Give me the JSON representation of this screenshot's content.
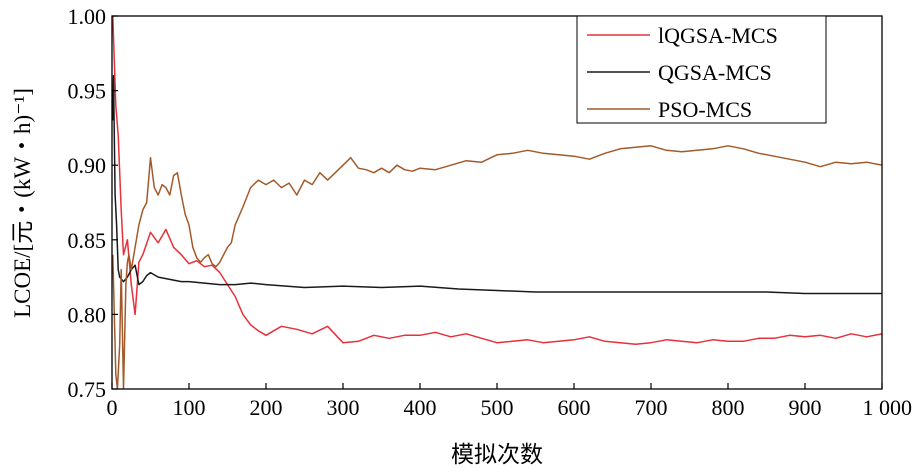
{
  "chart_data": {
    "type": "line",
    "title": "",
    "xlabel": "模拟次数",
    "ylabel": "LCOE/[元・(kW・h)⁻¹]",
    "xlim": [
      0,
      1000
    ],
    "ylim": [
      0.75,
      1.0
    ],
    "x_ticks": [
      0,
      100,
      200,
      300,
      400,
      500,
      600,
      700,
      800,
      900,
      1000
    ],
    "x_tick_labels": [
      "0",
      "100",
      "200",
      "300",
      "400",
      "500",
      "600",
      "700",
      "800",
      "900",
      "1 000"
    ],
    "y_ticks": [
      0.75,
      0.8,
      0.85,
      0.9,
      0.95,
      1.0
    ],
    "y_tick_labels": [
      "0.75",
      "0.80",
      "0.85",
      "0.90",
      "0.95",
      "1.00"
    ],
    "grid": false,
    "legend_position": "top-right",
    "series": [
      {
        "name": "lQGSA-MCS",
        "color": "#e8303a",
        "x": [
          1,
          3,
          5,
          8,
          12,
          15,
          20,
          25,
          30,
          35,
          40,
          50,
          60,
          70,
          80,
          90,
          100,
          110,
          120,
          130,
          140,
          150,
          160,
          170,
          180,
          190,
          200,
          220,
          240,
          260,
          280,
          300,
          320,
          340,
          360,
          380,
          400,
          420,
          440,
          460,
          480,
          500,
          520,
          540,
          560,
          580,
          600,
          620,
          640,
          660,
          680,
          700,
          720,
          740,
          760,
          780,
          800,
          820,
          840,
          860,
          880,
          900,
          920,
          940,
          960,
          980,
          1000
        ],
        "values": [
          1.0,
          0.97,
          0.94,
          0.92,
          0.87,
          0.84,
          0.85,
          0.82,
          0.8,
          0.835,
          0.84,
          0.855,
          0.848,
          0.857,
          0.845,
          0.84,
          0.834,
          0.836,
          0.832,
          0.833,
          0.828,
          0.82,
          0.812,
          0.8,
          0.793,
          0.789,
          0.786,
          0.792,
          0.79,
          0.787,
          0.792,
          0.781,
          0.782,
          0.786,
          0.784,
          0.786,
          0.786,
          0.788,
          0.785,
          0.787,
          0.784,
          0.781,
          0.782,
          0.783,
          0.781,
          0.782,
          0.783,
          0.785,
          0.782,
          0.781,
          0.78,
          0.781,
          0.783,
          0.782,
          0.781,
          0.783,
          0.782,
          0.782,
          0.784,
          0.784,
          0.786,
          0.785,
          0.786,
          0.784,
          0.787,
          0.785,
          0.787
        ]
      },
      {
        "name": "QGSA-MCS",
        "color": "#1a1a1a",
        "x": [
          1,
          2,
          4,
          6,
          8,
          10,
          15,
          20,
          25,
          30,
          35,
          40,
          45,
          50,
          60,
          70,
          80,
          90,
          100,
          120,
          140,
          160,
          180,
          200,
          250,
          300,
          350,
          400,
          450,
          500,
          550,
          600,
          650,
          700,
          750,
          800,
          850,
          900,
          950,
          1000
        ],
        "values": [
          0.93,
          0.96,
          0.88,
          0.86,
          0.83,
          0.825,
          0.822,
          0.825,
          0.83,
          0.833,
          0.82,
          0.822,
          0.826,
          0.828,
          0.825,
          0.824,
          0.823,
          0.822,
          0.822,
          0.821,
          0.82,
          0.82,
          0.821,
          0.82,
          0.818,
          0.819,
          0.818,
          0.819,
          0.817,
          0.816,
          0.815,
          0.815,
          0.815,
          0.815,
          0.815,
          0.815,
          0.815,
          0.814,
          0.814,
          0.814
        ]
      },
      {
        "name": "PSO-MCS",
        "color": "#a35a2a",
        "x": [
          1,
          3,
          5,
          7,
          10,
          12,
          15,
          18,
          20,
          22,
          25,
          30,
          35,
          40,
          45,
          50,
          55,
          60,
          65,
          70,
          75,
          80,
          85,
          90,
          95,
          100,
          105,
          110,
          115,
          120,
          125,
          130,
          135,
          140,
          145,
          150,
          155,
          160,
          170,
          180,
          190,
          200,
          210,
          220,
          230,
          240,
          250,
          260,
          270,
          280,
          290,
          300,
          310,
          320,
          330,
          340,
          350,
          360,
          370,
          380,
          390,
          400,
          420,
          440,
          460,
          480,
          500,
          520,
          540,
          560,
          580,
          600,
          620,
          640,
          660,
          680,
          700,
          720,
          740,
          760,
          780,
          800,
          820,
          840,
          860,
          880,
          900,
          920,
          940,
          960,
          980,
          1000
        ],
        "values": [
          0.84,
          0.8,
          0.76,
          0.75,
          0.78,
          0.83,
          0.75,
          0.82,
          0.835,
          0.84,
          0.83,
          0.845,
          0.86,
          0.87,
          0.875,
          0.905,
          0.885,
          0.88,
          0.887,
          0.885,
          0.88,
          0.893,
          0.895,
          0.88,
          0.867,
          0.86,
          0.845,
          0.838,
          0.835,
          0.838,
          0.84,
          0.834,
          0.832,
          0.835,
          0.84,
          0.845,
          0.848,
          0.86,
          0.872,
          0.885,
          0.89,
          0.887,
          0.89,
          0.885,
          0.888,
          0.88,
          0.89,
          0.887,
          0.895,
          0.89,
          0.895,
          0.9,
          0.905,
          0.898,
          0.897,
          0.895,
          0.898,
          0.895,
          0.9,
          0.897,
          0.896,
          0.898,
          0.897,
          0.9,
          0.903,
          0.902,
          0.907,
          0.908,
          0.91,
          0.908,
          0.907,
          0.906,
          0.904,
          0.908,
          0.911,
          0.912,
          0.913,
          0.91,
          0.909,
          0.91,
          0.911,
          0.913,
          0.911,
          0.908,
          0.906,
          0.904,
          0.902,
          0.899,
          0.902,
          0.901,
          0.902,
          0.9
        ]
      }
    ]
  }
}
